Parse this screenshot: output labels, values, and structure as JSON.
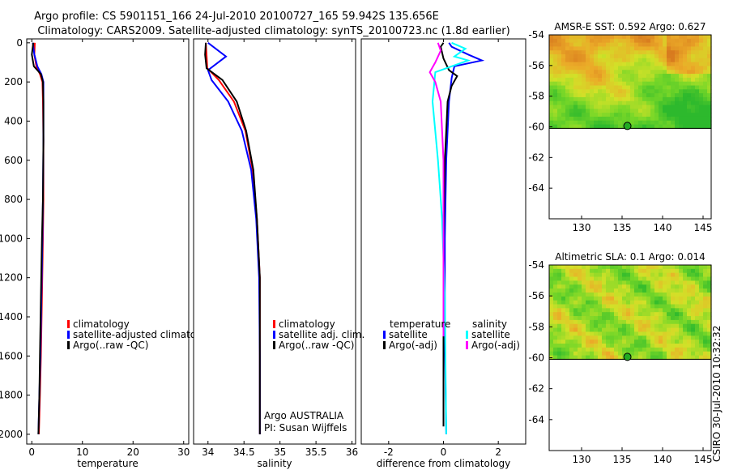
{
  "header": {
    "line1": "Argo profile: CS 5901151_166 24-Jul-2010 20100727_165 59.942S 135.656E",
    "line2": "Climatology: CARS2009. Satellite-adjusted climatology: synTS_20100723.nc (1.8d earlier)"
  },
  "colors": {
    "red": "#ff0000",
    "blue": "#0000ff",
    "black": "#000000",
    "cyan": "#00ffff",
    "magenta": "#ff00ff"
  },
  "chart_data": [
    {
      "id": "temperature",
      "type": "line",
      "xlabel": "temperature",
      "ylabel": "",
      "xlim": [
        -1,
        31
      ],
      "ylim": [
        2050,
        -20
      ],
      "xticks": [
        0,
        10,
        20,
        30
      ],
      "xtick_labels": [
        "0",
        "10",
        "20",
        "30"
      ],
      "yticks": [
        0,
        200,
        400,
        600,
        800,
        1000,
        1200,
        1400,
        1600,
        1800,
        2000
      ],
      "ytick_labels": [
        "0",
        "200",
        "400",
        "600",
        "800",
        "1000",
        "1200",
        "1400",
        "1600",
        "1800",
        "2000"
      ],
      "legend": [
        "climatology",
        "satellite-adjusted climatolog",
        "Argo(..raw -QC)"
      ],
      "series": [
        {
          "name": "climatology",
          "color": "red",
          "x": [
            0.6,
            0.5,
            0.9,
            1.6,
            2.1,
            2.2,
            2.3,
            2.3,
            2.2,
            2.0,
            1.8,
            1.6,
            1.4
          ],
          "y": [
            0,
            60,
            120,
            160,
            200,
            300,
            500,
            800,
            1000,
            1300,
            1600,
            1800,
            2000
          ]
        },
        {
          "name": "satellite-adjusted climatology",
          "color": "blue",
          "x": [
            0.2,
            0.5,
            1.1,
            1.9,
            2.3,
            2.3,
            2.3,
            2.2,
            2.1,
            1.9,
            1.7,
            1.5,
            1.3
          ],
          "y": [
            0,
            60,
            120,
            160,
            200,
            300,
            500,
            800,
            1000,
            1300,
            1600,
            1800,
            2000
          ]
        },
        {
          "name": "Argo(..raw -QC)",
          "color": "black",
          "x": [
            0.3,
            0.0,
            0.4,
            1.8,
            2.2,
            2.3,
            2.3,
            2.2,
            2.0,
            1.8,
            1.6,
            1.5,
            1.3
          ],
          "y": [
            0,
            60,
            120,
            160,
            200,
            300,
            500,
            800,
            1000,
            1300,
            1600,
            1800,
            2000
          ]
        }
      ],
      "annotations": []
    },
    {
      "id": "salinity",
      "type": "line",
      "xlabel": "salinity",
      "ylabel": "",
      "xlim": [
        33.8,
        36.05
      ],
      "ylim": [
        2050,
        -20
      ],
      "xticks": [
        34,
        34.5,
        35,
        35.5,
        36
      ],
      "xtick_labels": [
        "34",
        "34.5",
        "35",
        "35.5",
        "36"
      ],
      "yticks": [],
      "ytick_labels": [],
      "legend": [
        "climatology",
        "satellite adj. clim.",
        "Argo(..raw -QC)"
      ],
      "series": [
        {
          "name": "climatology",
          "color": "red",
          "x": [
            33.97,
            33.98,
            33.99,
            34.15,
            34.36,
            34.52,
            34.62,
            34.68,
            34.72,
            34.72,
            34.72
          ],
          "y": [
            0,
            60,
            130,
            190,
            300,
            450,
            650,
            900,
            1200,
            1600,
            2000
          ]
        },
        {
          "name": "satellite adj. clim.",
          "color": "blue",
          "x": [
            34.0,
            34.25,
            34.0,
            34.05,
            34.28,
            34.47,
            34.6,
            34.67,
            34.71,
            34.72,
            34.72
          ],
          "y": [
            0,
            70,
            140,
            190,
            300,
            450,
            650,
            900,
            1200,
            1600,
            2000
          ]
        },
        {
          "name": "Argo(..raw -QC)",
          "color": "black",
          "x": [
            33.97,
            33.96,
            33.98,
            34.2,
            34.4,
            34.53,
            34.63,
            34.68,
            34.72,
            34.72,
            34.72
          ],
          "y": [
            0,
            60,
            130,
            190,
            300,
            450,
            650,
            900,
            1200,
            1600,
            2000
          ]
        }
      ],
      "annotations": [
        "Argo AUSTRALIA",
        "PI: Susan Wijffels"
      ]
    },
    {
      "id": "difference",
      "type": "line",
      "xlabel": "difference from climatology",
      "ylabel": "",
      "xlim": [
        -3,
        3
      ],
      "ylim": [
        2050,
        -20
      ],
      "xticks": [
        -2,
        0,
        2
      ],
      "xtick_labels": [
        "-2",
        "0",
        "2"
      ],
      "yticks": [],
      "ytick_labels": [],
      "legend_titles": [
        "temperature",
        "salinity"
      ],
      "legend": [
        "satellite",
        "Argo(-adj)",
        "satellite",
        "Argo(-adj)"
      ],
      "series": [
        {
          "name": "temperature satellite",
          "color": "blue",
          "x": [
            0.2,
            0.3,
            0.9,
            1.4,
            0.4,
            0.3,
            0.2,
            0.1,
            0.05,
            0.05,
            0.1
          ],
          "y": [
            0,
            20,
            60,
            90,
            120,
            180,
            300,
            600,
            1000,
            1500,
            2000
          ]
        },
        {
          "name": "temperature Argo(-adj)",
          "color": "black",
          "x": [
            0.0,
            -0.1,
            0.0,
            0.2,
            0.5,
            0.3,
            0.15,
            0.05,
            0.0,
            0.0,
            0.0
          ],
          "y": [
            0,
            20,
            80,
            140,
            170,
            220,
            300,
            600,
            1000,
            1500,
            1960
          ]
        },
        {
          "name": "salinity satellite",
          "color": "cyan",
          "x": [
            0.3,
            0.8,
            0.4,
            0.9,
            -0.3,
            -0.4,
            -0.2,
            -0.05,
            0.05,
            0.1
          ],
          "y": [
            0,
            30,
            70,
            90,
            150,
            300,
            600,
            900,
            1300,
            2000
          ]
        },
        {
          "name": "salinity Argo(-adj)",
          "color": "magenta",
          "x": [
            -0.2,
            -0.1,
            -0.3,
            -0.5,
            -0.3,
            -0.1,
            0.0,
            0.0,
            0.0
          ],
          "y": [
            0,
            40,
            100,
            150,
            200,
            300,
            600,
            1000,
            1500
          ]
        }
      ],
      "annotations": []
    },
    {
      "id": "sst_map",
      "type": "heatmap",
      "title": "AMSR-E SST: 0.592 Argo: 0.627",
      "xlim": [
        126,
        146
      ],
      "ylim": [
        -66,
        -54
      ],
      "xticks": [
        130,
        135,
        140,
        145
      ],
      "xtick_labels": [
        "130",
        "135",
        "140",
        "145"
      ],
      "yticks": [
        -54,
        -56,
        -58,
        -60,
        -62,
        -64
      ],
      "ytick_labels": [
        "-54",
        "-56",
        "-58",
        "-60",
        "-62",
        "-64"
      ],
      "data_lat_range": [
        -60.1,
        -54
      ],
      "marker": {
        "lon": 135.656,
        "lat": -59.942
      }
    },
    {
      "id": "sla_map",
      "type": "heatmap",
      "title": "Altimetric SLA: 0.1 Argo: 0.014",
      "xlim": [
        126,
        146
      ],
      "ylim": [
        -66,
        -54
      ],
      "xticks": [
        130,
        135,
        140,
        145
      ],
      "xtick_labels": [
        "130",
        "135",
        "140",
        "145"
      ],
      "yticks": [
        -54,
        -56,
        -58,
        -60,
        -62,
        -64
      ],
      "ytick_labels": [
        "-54",
        "-56",
        "-58",
        "-60",
        "-62",
        "-64"
      ],
      "data_lat_range": [
        -60.1,
        -54
      ],
      "marker": {
        "lon": 135.656,
        "lat": -59.942
      }
    }
  ],
  "footer": {
    "stamp": "CSIRO 30-Jul-2010 10:32:32"
  }
}
